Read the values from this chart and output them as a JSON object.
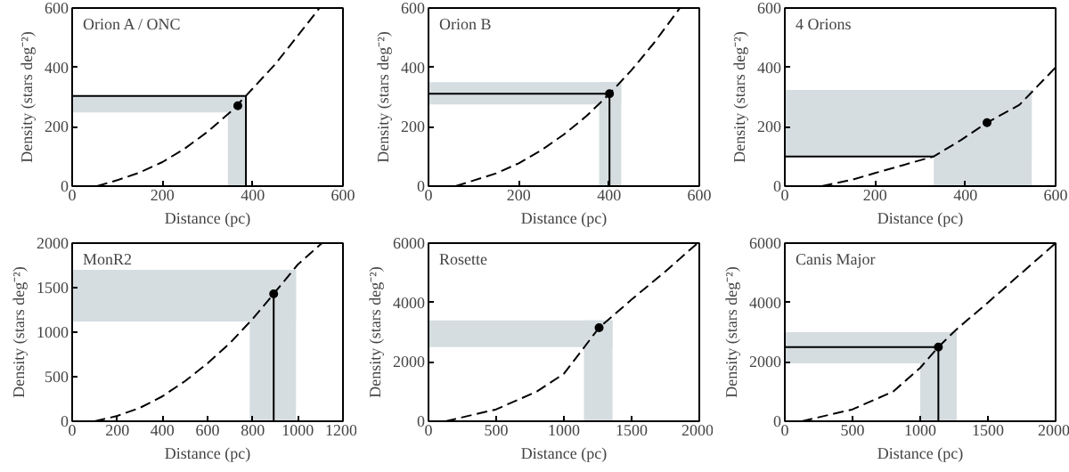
{
  "chart_data": [
    {
      "type": "line",
      "title": "Orion A / ONC",
      "xlabel": "Distance (pc)",
      "ylabel": "Density (stars deg⁻²)",
      "xlim": [
        0,
        600
      ],
      "ylim": [
        0,
        600
      ],
      "xticks": [
        0,
        200,
        400,
        600
      ],
      "yticks": [
        0,
        200,
        400,
        600
      ],
      "grid": false,
      "series": [
        {
          "line_style": "dashed",
          "color": "#000000",
          "x": [
            55,
            100,
            150,
            200,
            250,
            300,
            350,
            385,
            450,
            500,
            548
          ],
          "values": [
            0,
            20,
            46,
            81,
            127,
            183,
            249,
            304,
            411,
            507,
            600
          ]
        },
        {
          "line_style": "solid",
          "color": "#000000",
          "x": [
            0,
            385,
            385
          ],
          "values": [
            304,
            304,
            0
          ]
        },
        {
          "type": "scatter",
          "color": "#000000",
          "x": [
            367
          ],
          "values": [
            271
          ]
        }
      ],
      "bands": [
        {
          "axis": "x",
          "from": 345,
          "to": 385,
          "color": "#d5dde0"
        },
        {
          "axis": "y",
          "from": 248,
          "to": 304,
          "color": "#d5dde0"
        }
      ]
    },
    {
      "type": "line",
      "title": "Orion B",
      "xlabel": "Distance (pc)",
      "ylabel": "Density (stars deg⁻²)",
      "xlim": [
        0,
        600
      ],
      "ylim": [
        0,
        600
      ],
      "xticks": [
        0,
        200,
        400,
        600
      ],
      "yticks": [
        0,
        200,
        400,
        600
      ],
      "grid": false,
      "series": [
        {
          "line_style": "dashed",
          "color": "#000000",
          "x": [
            60,
            100,
            150,
            200,
            250,
            300,
            350,
            401,
            450,
            500,
            557
          ],
          "values": [
            0,
            19,
            43,
            77,
            121,
            174,
            236,
            311,
            391,
            483,
            600
          ]
        },
        {
          "line_style": "solid",
          "color": "#000000",
          "x": [
            0,
            401,
            401
          ],
          "values": [
            311,
            311,
            0
          ]
        },
        {
          "type": "scatter",
          "color": "#000000",
          "x": [
            401
          ],
          "values": [
            311
          ]
        }
      ],
      "bands": [
        {
          "axis": "x",
          "from": 378,
          "to": 427,
          "color": "#d5dde0"
        },
        {
          "axis": "y",
          "from": 275,
          "to": 350,
          "color": "#d5dde0"
        }
      ]
    },
    {
      "type": "line",
      "title": "4 Orions",
      "xlabel": "Distance (pc)",
      "ylabel": "Density (stars deg⁻²)",
      "xlim": [
        0,
        600
      ],
      "ylim": [
        0,
        600
      ],
      "xticks": [
        0,
        200,
        400,
        600
      ],
      "yticks": [
        0,
        200,
        400,
        600
      ],
      "grid": false,
      "series": [
        {
          "line_style": "dashed",
          "color": "#000000",
          "x": [
            82,
            150,
            200,
            260,
            330,
            390,
            448,
            520,
            600
          ],
          "values": [
            0,
            22,
            44,
            70,
            100,
            155,
            214,
            274,
            400
          ]
        },
        {
          "line_style": "solid",
          "color": "#000000",
          "x": [
            0,
            330
          ],
          "values": [
            100,
            100
          ]
        },
        {
          "type": "scatter",
          "color": "#000000",
          "x": [
            448
          ],
          "values": [
            214
          ]
        }
      ],
      "bands": [
        {
          "axis": "x",
          "from": 330,
          "to": 547,
          "color": "#d5dde0"
        },
        {
          "axis": "y",
          "from": 100,
          "to": 324,
          "color": "#d5dde0"
        }
      ]
    },
    {
      "type": "line",
      "title": "MonR2",
      "xlabel": "Distance (pc)",
      "ylabel": "Density (stars deg⁻²)",
      "xlim": [
        0,
        1200
      ],
      "ylim": [
        0,
        2000
      ],
      "xticks": [
        0,
        200,
        400,
        600,
        800,
        1000,
        1200
      ],
      "yticks": [
        0,
        500,
        1000,
        1500,
        2000
      ],
      "grid": false,
      "series": [
        {
          "line_style": "dashed",
          "color": "#000000",
          "x": [
            100,
            200,
            300,
            400,
            500,
            600,
            700,
            800,
            893,
            1000,
            1107
          ],
          "values": [
            0,
            60,
            150,
            280,
            450,
            650,
            880,
            1150,
            1430,
            1760,
            2000
          ]
        },
        {
          "line_style": "solid",
          "color": "#000000",
          "x": [
            893,
            893
          ],
          "values": [
            0,
            1430
          ]
        },
        {
          "type": "scatter",
          "color": "#000000",
          "x": [
            893
          ],
          "values": [
            1430
          ]
        }
      ],
      "bands": [
        {
          "axis": "x",
          "from": 787,
          "to": 992,
          "color": "#d5dde0"
        },
        {
          "axis": "y",
          "from": 1120,
          "to": 1700,
          "color": "#d5dde0"
        }
      ]
    },
    {
      "type": "line",
      "title": "Rosette",
      "xlabel": "Distance (pc)",
      "ylabel": "Density (stars deg⁻²)",
      "xlim": [
        0,
        2000
      ],
      "ylim": [
        0,
        6000
      ],
      "xticks": [
        0,
        500,
        1000,
        1500,
        2000
      ],
      "yticks": [
        0,
        2000,
        4000,
        6000
      ],
      "grid": false,
      "series": [
        {
          "line_style": "dashed",
          "color": "#000000",
          "x": [
            126,
            500,
            800,
            1000,
            1260,
            1500,
            1750,
            1987
          ],
          "values": [
            0,
            400,
            1000,
            1600,
            3150,
            4100,
            5050,
            6000
          ]
        },
        {
          "type": "scatter",
          "color": "#000000",
          "x": [
            1260
          ],
          "values": [
            3150
          ]
        }
      ],
      "bands": [
        {
          "axis": "x",
          "from": 1148,
          "to": 1359,
          "color": "#d5dde0"
        },
        {
          "axis": "y",
          "from": 2500,
          "to": 3400,
          "color": "#d5dde0"
        }
      ]
    },
    {
      "type": "line",
      "title": "Canis Major",
      "xlabel": "Distance (pc)",
      "ylabel": "Density (stars deg⁻²)",
      "xlim": [
        0,
        2000
      ],
      "ylim": [
        0,
        6000
      ],
      "xticks": [
        0,
        500,
        1000,
        1500,
        2000
      ],
      "yticks": [
        0,
        2000,
        4000,
        6000
      ],
      "grid": false,
      "series": [
        {
          "line_style": "dashed",
          "color": "#000000",
          "x": [
            126,
            500,
            800,
            1000,
            1134,
            1269,
            1500,
            1750,
            2000
          ],
          "values": [
            0,
            400,
            1000,
            1800,
            2500,
            3100,
            4000,
            5000,
            6000
          ]
        },
        {
          "line_style": "solid",
          "color": "#000000",
          "x": [
            0,
            1134,
            1134
          ],
          "values": [
            2500,
            2500,
            0
          ]
        },
        {
          "type": "scatter",
          "color": "#000000",
          "x": [
            1134
          ],
          "values": [
            2500
          ]
        }
      ],
      "bands": [
        {
          "axis": "x",
          "from": 1000,
          "to": 1269,
          "color": "#d5dde0"
        },
        {
          "axis": "y",
          "from": 1950,
          "to": 3000,
          "color": "#d5dde0"
        }
      ]
    }
  ]
}
